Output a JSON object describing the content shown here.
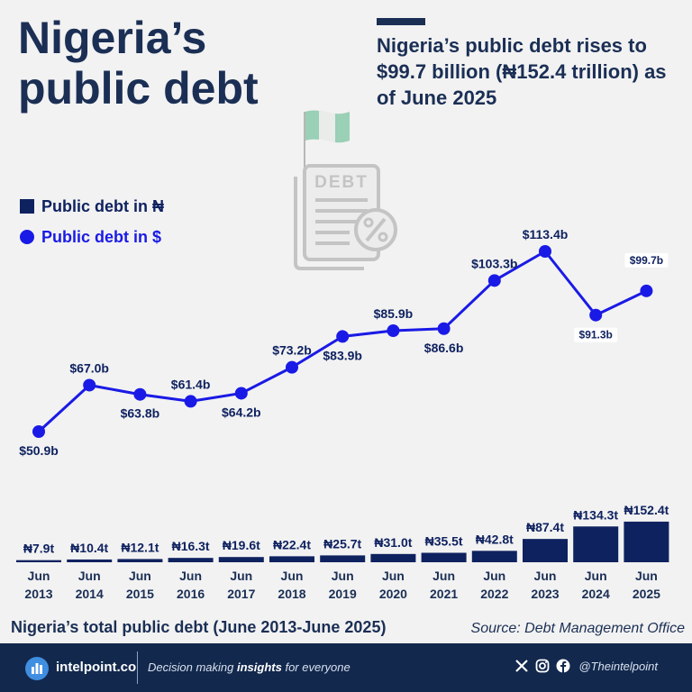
{
  "header": {
    "title_line1": "Nigeria’s",
    "title_line2": "public debt",
    "headline": "Nigeria’s public debt rises to $99.7 billion (₦152.4 trillion) as of June 2025"
  },
  "legend": {
    "naira": "Public debt in ₦",
    "usd": "Public debt in $"
  },
  "chart_data": {
    "type": "bar",
    "title": "Nigeria’s total public debt (June 2013-June 2025)",
    "categories": [
      "Jun 2013",
      "Jun 2014",
      "Jun 2015",
      "Jun 2016",
      "Jun 2017",
      "Jun 2018",
      "Jun 2019",
      "Jun 2020",
      "Jun 2021",
      "Jun 2022",
      "Jun 2023",
      "Jun 2024",
      "Jun 2025"
    ],
    "series": [
      {
        "name": "Public debt in ₦",
        "type": "bar",
        "unit": "trillion naira",
        "values": [
          7.9,
          10.4,
          12.1,
          16.3,
          19.6,
          22.4,
          25.7,
          31.0,
          35.5,
          42.8,
          87.4,
          134.3,
          152.4
        ],
        "labels": [
          "₦7.9t",
          "₦10.4t",
          "₦12.1t",
          "₦16.3t",
          "₦19.6t",
          "₦22.4t",
          "₦25.7t",
          "₦31.0t",
          "₦35.5t",
          "₦42.8t",
          "₦87.4t",
          "₦134.3t",
          "₦152.4t"
        ]
      },
      {
        "name": "Public debt in $",
        "type": "line",
        "unit": "billion USD",
        "values": [
          50.9,
          67.0,
          63.8,
          61.4,
          64.2,
          73.2,
          83.9,
          85.9,
          86.6,
          103.3,
          113.4,
          91.3,
          99.7
        ],
        "labels": [
          "$50.9b",
          "$67.0b",
          "$63.8b",
          "$61.4b",
          "$64.2b",
          "$73.2b",
          "$83.9b",
          "$85.9b",
          "$86.6b",
          "$103.3b",
          "$113.4b",
          "$91.3b",
          "$99.7b"
        ]
      }
    ],
    "grid": false,
    "legend_position": "left"
  },
  "source": "Source: Debt Management Office",
  "footer": {
    "brand": "intelpoint.co",
    "tagline_pre": "Decision making",
    "tagline_em": "insights",
    "tagline_post": "for everyone",
    "handle": "@Theintelpoint"
  },
  "colors": {
    "bar": "#0f2260",
    "line": "#1a1ae6",
    "title": "#1b2f55",
    "background": "#f2f2f2",
    "footer": "#12284d",
    "flag_green": "#9ad0b5"
  },
  "icons": [
    "nigeria-flag-icon",
    "debt-document-icon",
    "percent-badge-icon",
    "intelpoint-logo-icon",
    "x-icon",
    "instagram-icon",
    "facebook-icon"
  ]
}
